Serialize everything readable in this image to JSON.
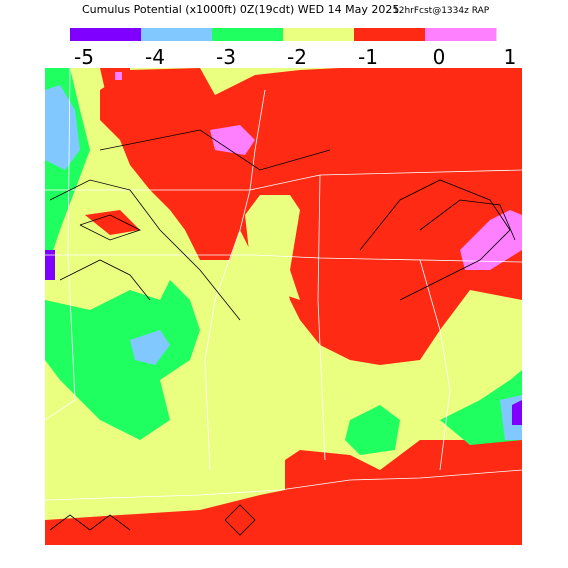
{
  "header": {
    "title": "Cumulus Potential (x1000ft) 0Z(19cdt) WED 14 May 2025",
    "model": "12hrFcst@1334z RAP"
  },
  "colorbar": {
    "colors": [
      "#8000ff",
      "#80c8ff",
      "#20ff60",
      "#eaff80",
      "#ff2a14",
      "#ff80ff"
    ],
    "ticks": [
      -5,
      -4,
      -3,
      -2,
      -1,
      0,
      1
    ]
  }
}
